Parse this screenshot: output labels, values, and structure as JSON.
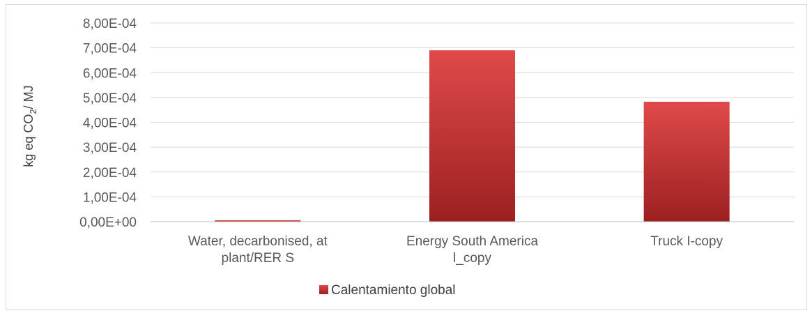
{
  "chart_data": {
    "type": "bar",
    "title": "",
    "categories": [
      [
        "Water, decarbonised, at",
        "plant/RER S"
      ],
      [
        "Energy South America",
        "l_copy"
      ],
      [
        "Truck I-copy"
      ]
    ],
    "series": [
      {
        "name": "Calentamiento global",
        "values": [
          4.5e-06,
          0.00069,
          0.000483
        ],
        "color": "#c83232"
      }
    ],
    "ylabel": {
      "main": "kg eq CO",
      "subscript": "2",
      "suffix": "/ MJ"
    },
    "ylim": [
      0,
      0.0008
    ],
    "y_ticks": [
      {
        "value": 0.0008,
        "label": "8,00E-04"
      },
      {
        "value": 0.0007,
        "label": "7,00E-04"
      },
      {
        "value": 0.0006,
        "label": "6,00E-04"
      },
      {
        "value": 0.0005,
        "label": "5,00E-04"
      },
      {
        "value": 0.0004,
        "label": "4,00E-04"
      },
      {
        "value": 0.0003,
        "label": "3,00E-04"
      },
      {
        "value": 0.0002,
        "label": "2,00E-04"
      },
      {
        "value": 0.0001,
        "label": "1,00E-04"
      },
      {
        "value": 0,
        "label": "0,00E+00"
      }
    ],
    "grid": true,
    "legend_position": "bottom",
    "colors": {
      "bar_light": "#e04a4a",
      "bar_dark": "#9c2020",
      "grid": "#d9d9d9",
      "axis": "#bfbfbf"
    }
  }
}
